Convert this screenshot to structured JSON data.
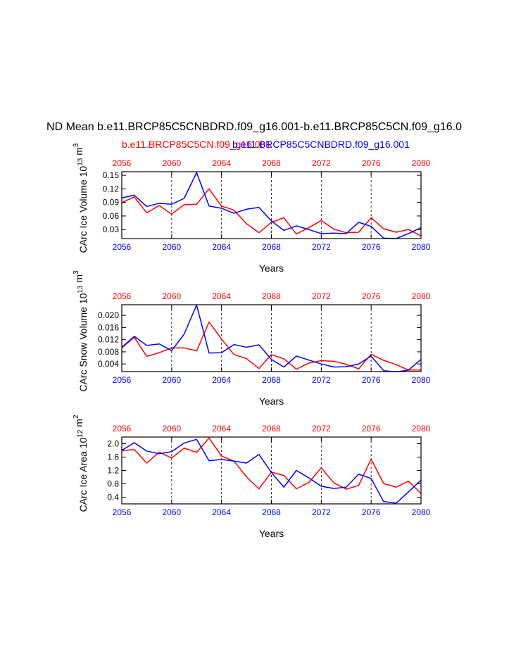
{
  "figure": {
    "title": "ND Mean b.e11.BRCP85C5CNBDRD.f09_g16.001-b.e11.BRCP85C5CN.f09_g16.0",
    "legend_red": "b.e11.BRCP85C5CN.f09_g16.001",
    "legend_blue": "b.e11.BRCP85C5CNBDRD.f09_g16.001"
  },
  "colors": {
    "red": "#ff0000",
    "blue": "#0000ff",
    "axis": "#000000",
    "grid": "#000000"
  },
  "chart_data": [
    {
      "type": "line",
      "ylabel": "CArc Ice Volume",
      "units_base": "10",
      "units_exp": "13",
      "units_unit": "m",
      "units_unit_exp": "3",
      "xlabel": "Years",
      "xlim": [
        2056,
        2080
      ],
      "ylim": [
        0.01,
        0.158
      ],
      "yticks": [
        0.03,
        0.06,
        0.09,
        0.12,
        0.15
      ],
      "ytick_labels": [
        "0.03",
        "0.06",
        "0.09",
        "0.12",
        "0.15"
      ],
      "xticks": [
        2056,
        2060,
        2064,
        2068,
        2072,
        2076,
        2080
      ],
      "xtick_labels": [
        "2056",
        "2060",
        "2064",
        "2068",
        "2072",
        "2076",
        "2080"
      ],
      "vgrid": [
        2060,
        2064,
        2068,
        2072,
        2076
      ],
      "x": [
        2056,
        2057,
        2058,
        2059,
        2060,
        2061,
        2062,
        2063,
        2064,
        2065,
        2066,
        2067,
        2068,
        2069,
        2070,
        2071,
        2072,
        2073,
        2074,
        2075,
        2076,
        2077,
        2078,
        2079,
        2080
      ],
      "series": [
        {
          "name": "b.e11.BRCP85C5CN.f09_g16.001",
          "color": "red",
          "values": [
            0.09,
            0.102,
            0.067,
            0.083,
            0.064,
            0.085,
            0.086,
            0.12,
            0.082,
            0.073,
            0.043,
            0.023,
            0.046,
            0.056,
            0.02,
            0.034,
            0.05,
            0.031,
            0.023,
            0.024,
            0.056,
            0.032,
            0.024,
            0.03,
            0.016
          ]
        },
        {
          "name": "b.e11.BRCP85C5CNBDRD.f09_g16.001",
          "color": "blue",
          "values": [
            0.1,
            0.106,
            0.081,
            0.088,
            0.086,
            0.099,
            0.156,
            0.082,
            0.077,
            0.066,
            0.075,
            0.079,
            0.049,
            0.028,
            0.038,
            0.03,
            0.021,
            0.022,
            0.021,
            0.046,
            0.037,
            0.011,
            0.01,
            0.021,
            0.034
          ]
        }
      ]
    },
    {
      "type": "line",
      "ylabel": "CArc Snow Volume",
      "units_base": "10",
      "units_exp": "13",
      "units_unit": "m",
      "units_unit_exp": "3",
      "xlabel": "Years",
      "xlim": [
        2056,
        2080
      ],
      "ylim": [
        0.0015,
        0.0235
      ],
      "yticks": [
        0.004,
        0.008,
        0.012,
        0.016,
        0.02
      ],
      "ytick_labels": [
        "0.004",
        "0.008",
        "0.012",
        "0.016",
        "0.020"
      ],
      "xticks": [
        2056,
        2060,
        2064,
        2068,
        2072,
        2076,
        2080
      ],
      "xtick_labels": [
        "2056",
        "2060",
        "2064",
        "2068",
        "2072",
        "2076",
        "2080"
      ],
      "vgrid": [
        2060,
        2064,
        2068,
        2072,
        2076
      ],
      "x": [
        2056,
        2057,
        2058,
        2059,
        2060,
        2061,
        2062,
        2063,
        2064,
        2065,
        2066,
        2067,
        2068,
        2069,
        2070,
        2071,
        2072,
        2073,
        2074,
        2075,
        2076,
        2077,
        2078,
        2079,
        2080
      ],
      "series": [
        {
          "name": "b.e11.BRCP85C5CN.f09_g16.001",
          "color": "red",
          "values": [
            0.0093,
            0.0128,
            0.0065,
            0.0077,
            0.0093,
            0.0093,
            0.0083,
            0.0178,
            0.0122,
            0.0071,
            0.0058,
            0.0025,
            0.0071,
            0.0057,
            0.0023,
            0.0043,
            0.0051,
            0.0049,
            0.0039,
            0.0024,
            0.0072,
            0.0052,
            0.0038,
            0.002,
            0.002
          ]
        },
        {
          "name": "b.e11.BRCP85C5CNBDRD.f09_g16.001",
          "color": "blue",
          "values": [
            0.0095,
            0.0131,
            0.0101,
            0.0106,
            0.0084,
            0.0138,
            0.0234,
            0.0076,
            0.0077,
            0.0104,
            0.0095,
            0.0103,
            0.0055,
            0.003,
            0.0066,
            0.0053,
            0.004,
            0.003,
            0.0031,
            0.004,
            0.0066,
            0.0018,
            0.0014,
            0.002,
            0.0055
          ]
        }
      ]
    },
    {
      "type": "line",
      "ylabel": "CArc Ice Area",
      "units_base": "10",
      "units_exp": "12",
      "units_unit": "m",
      "units_unit_exp": "2",
      "xlabel": "Years",
      "xlim": [
        2056,
        2080
      ],
      "ylim": [
        0.2,
        2.2
      ],
      "yticks": [
        0.4,
        0.8,
        1.2,
        1.6,
        2.0
      ],
      "ytick_labels": [
        "0.4",
        "0.8",
        "1.2",
        "1.6",
        "2.0"
      ],
      "xticks": [
        2056,
        2060,
        2064,
        2068,
        2072,
        2076,
        2080
      ],
      "xtick_labels": [
        "2056",
        "2060",
        "2064",
        "2068",
        "2072",
        "2076",
        "2080"
      ],
      "vgrid": [
        2060,
        2064,
        2068,
        2072,
        2076
      ],
      "x": [
        2056,
        2057,
        2058,
        2059,
        2060,
        2061,
        2062,
        2063,
        2064,
        2065,
        2066,
        2067,
        2068,
        2069,
        2070,
        2071,
        2072,
        2073,
        2074,
        2075,
        2076,
        2077,
        2078,
        2079,
        2080
      ],
      "series": [
        {
          "name": "b.e11.BRCP85C5CN.f09_g16.001",
          "color": "red",
          "values": [
            1.79,
            1.83,
            1.42,
            1.75,
            1.57,
            1.87,
            1.74,
            2.17,
            1.63,
            1.48,
            1.01,
            0.65,
            1.15,
            1.05,
            0.65,
            0.84,
            1.28,
            0.83,
            0.64,
            0.75,
            1.54,
            0.81,
            0.7,
            0.88,
            0.51
          ]
        },
        {
          "name": "b.e11.BRCP85C5CNBDRD.f09_g16.001",
          "color": "blue",
          "values": [
            1.8,
            2.03,
            1.78,
            1.7,
            1.76,
            2.02,
            2.13,
            1.49,
            1.53,
            1.48,
            1.42,
            1.68,
            1.14,
            0.7,
            1.2,
            0.98,
            0.73,
            0.66,
            0.7,
            1.09,
            0.96,
            0.27,
            0.22,
            0.56,
            0.91
          ]
        }
      ]
    }
  ]
}
